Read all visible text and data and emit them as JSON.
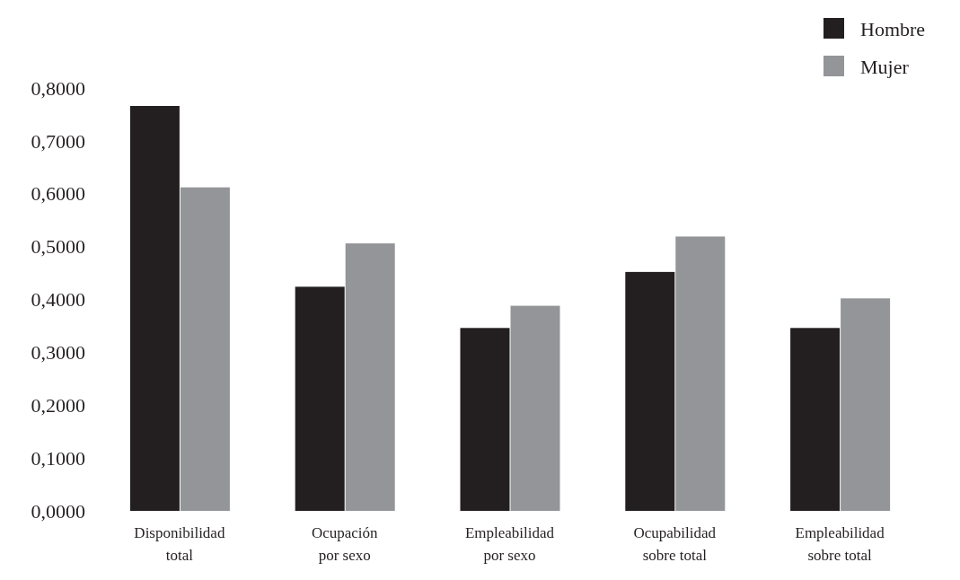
{
  "chart_data": {
    "type": "bar",
    "categories": [
      "Disponibilidad total",
      "Ocupación por sexo",
      "Empleabilidad por sexo",
      "Ocupabilidad sobre total",
      "Empleabilidad sobre total"
    ],
    "series": [
      {
        "name": "Hombre",
        "color": "#231f20",
        "values": [
          0.766,
          0.424,
          0.346,
          0.452,
          0.346
        ]
      },
      {
        "name": "Mujer",
        "color": "#939598",
        "values": [
          0.612,
          0.506,
          0.388,
          0.519,
          0.402
        ]
      }
    ],
    "ylim": [
      0,
      0.8
    ],
    "yticks": [
      {
        "value": 0,
        "label": "0,0000"
      },
      {
        "value": 0.1,
        "label": "0,1000"
      },
      {
        "value": 0.2,
        "label": "0,2000"
      },
      {
        "value": 0.3,
        "label": "0,3000"
      },
      {
        "value": 0.4,
        "label": "0,4000"
      },
      {
        "value": 0.5,
        "label": "0,5000"
      },
      {
        "value": 0.6,
        "label": "0,6000"
      },
      {
        "value": 0.7,
        "label": "0,7000"
      },
      {
        "value": 0.8,
        "label": "0,8000"
      }
    ],
    "legend": "top right",
    "grid": false
  }
}
